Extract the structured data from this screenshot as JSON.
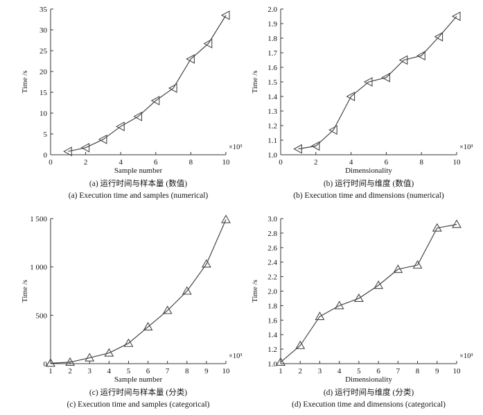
{
  "chart_data": [
    {
      "id": "a",
      "type": "line",
      "marker": "triangle-left",
      "xlabel": "Sample number",
      "ylabel": "Time /s",
      "x_multiplier": "×10³",
      "caption_cn": "(a) 运行时间与样本量 (数值)",
      "caption_en": "(a) Execution time and samples (numerical)",
      "xlim": [
        0,
        10
      ],
      "ylim": [
        0,
        35
      ],
      "xticks": [
        0,
        2,
        4,
        6,
        8,
        10
      ],
      "yticks": [
        0,
        5,
        10,
        15,
        20,
        25,
        30,
        35
      ],
      "ytick_labels": [
        "0",
        "5",
        "10",
        "15",
        "20",
        "25",
        "30",
        "35"
      ],
      "x": [
        1,
        2,
        3,
        4,
        5,
        6,
        7,
        8,
        9,
        10
      ],
      "y": [
        0.8,
        1.7,
        3.7,
        6.8,
        9.2,
        13.0,
        16.0,
        23.0,
        26.7,
        33.5
      ]
    },
    {
      "id": "b",
      "type": "line",
      "marker": "triangle-left",
      "xlabel": "Dimensionality",
      "ylabel": "Time /s",
      "x_multiplier": "×10³",
      "caption_cn": "(b) 运行时间与维度 (数值)",
      "caption_en": "(b) Execution time and dimensions (numerical)",
      "xlim": [
        0,
        10
      ],
      "ylim": [
        1.0,
        2.0
      ],
      "xticks": [
        0,
        2,
        4,
        6,
        8,
        10
      ],
      "yticks": [
        1.0,
        1.1,
        1.2,
        1.3,
        1.4,
        1.5,
        1.6,
        1.7,
        1.8,
        1.9,
        2.0
      ],
      "ytick_labels": [
        "1.0",
        "1.1",
        "1.2",
        "1.3",
        "1.4",
        "1.5",
        "1.6",
        "1.7",
        "1.8",
        "1.9",
        "2.0"
      ],
      "x": [
        1,
        2,
        3,
        4,
        5,
        6,
        7,
        8,
        9,
        10
      ],
      "y": [
        1.04,
        1.06,
        1.17,
        1.4,
        1.5,
        1.53,
        1.65,
        1.68,
        1.81,
        1.95
      ]
    },
    {
      "id": "c",
      "type": "line",
      "marker": "triangle-up",
      "xlabel": "Sample number",
      "ylabel": "Time /s",
      "x_multiplier": "×10³",
      "caption_cn": "(c) 运行时间与样本量 (分类)",
      "caption_en": "(c) Execution time and samples (categorical)",
      "xlim": [
        1,
        10
      ],
      "ylim": [
        0,
        1500
      ],
      "xticks": [
        1,
        2,
        3,
        4,
        5,
        6,
        7,
        8,
        9,
        10
      ],
      "yticks": [
        0,
        500,
        1000,
        1500
      ],
      "ytick_labels": [
        "0",
        "500",
        "1 000",
        "1 500"
      ],
      "x": [
        1,
        2,
        3,
        4,
        5,
        6,
        7,
        8,
        9,
        10
      ],
      "y": [
        5,
        15,
        60,
        110,
        210,
        380,
        550,
        750,
        1030,
        1490
      ]
    },
    {
      "id": "d",
      "type": "line",
      "marker": "triangle-up",
      "xlabel": "Dimensionality",
      "ylabel": "Time /s",
      "x_multiplier": "×10³",
      "caption_cn": "(d) 运行时间与维度 (分类)",
      "caption_en": "(d) Execution time and dimensions (categorical)",
      "xlim": [
        1,
        10
      ],
      "ylim": [
        1.0,
        3.0
      ],
      "xticks": [
        1,
        2,
        3,
        4,
        5,
        6,
        7,
        8,
        9,
        10
      ],
      "yticks": [
        1.0,
        1.2,
        1.4,
        1.6,
        1.8,
        2.0,
        2.2,
        2.4,
        2.6,
        2.8,
        3.0
      ],
      "ytick_labels": [
        "1.0",
        "1.2",
        "1.4",
        "1.6",
        "1.8",
        "2.0",
        "2.2",
        "2.4",
        "2.6",
        "2.8",
        "3.0"
      ],
      "x": [
        1,
        2,
        3,
        4,
        5,
        6,
        7,
        8,
        9,
        10
      ],
      "y": [
        1.02,
        1.25,
        1.65,
        1.8,
        1.9,
        2.08,
        2.3,
        2.36,
        2.87,
        2.92
      ]
    }
  ]
}
